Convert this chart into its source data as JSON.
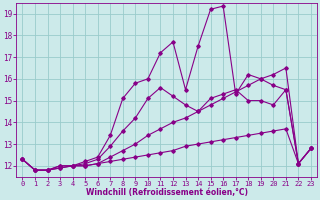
{
  "xlabel": "Windchill (Refroidissement éolien,°C)",
  "xlim": [
    -0.5,
    23.5
  ],
  "ylim": [
    11.5,
    19.5
  ],
  "yticks": [
    12,
    13,
    14,
    15,
    16,
    17,
    18,
    19
  ],
  "xticks": [
    0,
    1,
    2,
    3,
    4,
    5,
    6,
    7,
    8,
    9,
    10,
    11,
    12,
    13,
    14,
    15,
    16,
    17,
    18,
    19,
    20,
    21,
    22,
    23
  ],
  "bg_color": "#cceaea",
  "line_color": "#880088",
  "grid_color": "#99cccc",
  "lines": [
    {
      "x": [
        0,
        1,
        2,
        3,
        4,
        5,
        6,
        7,
        8,
        9,
        10,
        11,
        12,
        13,
        14,
        15,
        16,
        17,
        18,
        19,
        20,
        21,
        22,
        23
      ],
      "y": [
        12.3,
        11.8,
        11.8,
        11.9,
        12.0,
        12.0,
        12.1,
        12.2,
        12.3,
        12.4,
        12.5,
        12.6,
        12.7,
        12.9,
        13.0,
        13.1,
        13.2,
        13.3,
        13.4,
        13.5,
        13.6,
        13.7,
        12.1,
        12.8
      ]
    },
    {
      "x": [
        0,
        1,
        2,
        3,
        4,
        5,
        6,
        7,
        8,
        9,
        10,
        11,
        12,
        13,
        14,
        15,
        16,
        17,
        18,
        19,
        20,
        21,
        22,
        23
      ],
      "y": [
        12.3,
        11.8,
        11.8,
        11.9,
        12.0,
        12.0,
        12.1,
        12.4,
        12.7,
        13.0,
        13.4,
        13.7,
        14.0,
        14.2,
        14.5,
        14.8,
        15.1,
        15.4,
        15.7,
        16.0,
        16.2,
        16.5,
        12.1,
        12.8
      ]
    },
    {
      "x": [
        0,
        1,
        2,
        3,
        4,
        5,
        6,
        7,
        8,
        9,
        10,
        11,
        12,
        13,
        14,
        15,
        16,
        17,
        18,
        19,
        20,
        21,
        22,
        23
      ],
      "y": [
        12.3,
        11.8,
        11.8,
        12.0,
        12.0,
        12.1,
        12.3,
        12.9,
        13.6,
        14.2,
        15.1,
        15.6,
        15.2,
        14.8,
        14.5,
        15.1,
        15.3,
        15.5,
        15.0,
        15.0,
        14.8,
        15.5,
        12.1,
        12.8
      ]
    },
    {
      "x": [
        0,
        1,
        2,
        3,
        4,
        5,
        6,
        7,
        8,
        9,
        10,
        11,
        12,
        13,
        14,
        15,
        16,
        17,
        18,
        19,
        20,
        21,
        22,
        23
      ],
      "y": [
        12.3,
        11.8,
        11.8,
        12.0,
        12.0,
        12.2,
        12.4,
        13.4,
        15.1,
        15.8,
        16.0,
        17.2,
        17.7,
        15.5,
        17.5,
        19.2,
        19.35,
        15.3,
        16.2,
        16.0,
        15.7,
        15.5,
        12.1,
        12.8
      ]
    }
  ]
}
